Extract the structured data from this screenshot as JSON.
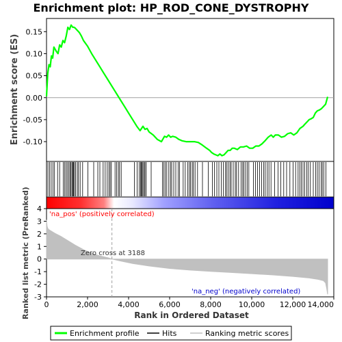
{
  "chart_data": [
    {
      "type": "line",
      "title": "Enrichment plot: HP_ROD_CONE_DYSTROPHY",
      "ylabel": "Enrichment score (ES)",
      "ylim": [
        -0.145,
        0.18
      ],
      "yticks": [
        -0.1,
        -0.05,
        0.0,
        0.05,
        0.1,
        0.15
      ],
      "ytick_labels": [
        "-0.10",
        "-0.05",
        "0.00",
        "0.05",
        "0.10",
        "0.15"
      ],
      "grid": false,
      "series": [
        {
          "name": "Enrichment profile",
          "color": "#00ff00",
          "x": [
            0,
            60,
            120,
            180,
            240,
            300,
            360,
            420,
            480,
            560,
            640,
            720,
            800,
            880,
            960,
            1040,
            1120,
            1200,
            1280,
            1340,
            1400,
            1460,
            1520,
            1600,
            1700,
            1800,
            2000,
            2200,
            2400,
            2600,
            2800,
            3000,
            3200,
            3400,
            3600,
            3800,
            4000,
            4200,
            4400,
            4560,
            4700,
            4800,
            4900,
            5000,
            5200,
            5400,
            5600,
            5750,
            5850,
            5950,
            6050,
            6150,
            6300,
            6450,
            6600,
            6800,
            7000,
            7200,
            7400,
            7600,
            7800,
            7950,
            8050,
            8150,
            8250,
            8350,
            8450,
            8550,
            8650,
            8750,
            8850,
            8950,
            9050,
            9150,
            9300,
            9450,
            9600,
            9750,
            9900,
            10050,
            10200,
            10350,
            10500,
            10650,
            10800,
            10950,
            11050,
            11150,
            11300,
            11450,
            11600,
            11750,
            11900,
            12050,
            12200,
            12350,
            12500,
            12600,
            12700,
            12800,
            12900,
            13000,
            13100,
            13200,
            13300,
            13400,
            13500,
            13600,
            13700
          ],
          "y": [
            0.003,
            0.055,
            0.075,
            0.07,
            0.095,
            0.09,
            0.115,
            0.11,
            0.105,
            0.1,
            0.12,
            0.115,
            0.13,
            0.125,
            0.14,
            0.16,
            0.155,
            0.165,
            0.16,
            0.16,
            0.158,
            0.155,
            0.152,
            0.148,
            0.14,
            0.13,
            0.117,
            0.1,
            0.085,
            0.07,
            0.055,
            0.04,
            0.025,
            0.01,
            -0.005,
            -0.02,
            -0.035,
            -0.05,
            -0.065,
            -0.075,
            -0.065,
            -0.072,
            -0.07,
            -0.078,
            -0.085,
            -0.095,
            -0.1,
            -0.088,
            -0.09,
            -0.085,
            -0.09,
            -0.088,
            -0.09,
            -0.095,
            -0.098,
            -0.1,
            -0.1,
            -0.1,
            -0.102,
            -0.108,
            -0.115,
            -0.12,
            -0.125,
            -0.128,
            -0.13,
            -0.132,
            -0.128,
            -0.132,
            -0.13,
            -0.125,
            -0.12,
            -0.12,
            -0.115,
            -0.115,
            -0.118,
            -0.112,
            -0.112,
            -0.11,
            -0.115,
            -0.115,
            -0.11,
            -0.11,
            -0.105,
            -0.098,
            -0.09,
            -0.085,
            -0.09,
            -0.085,
            -0.085,
            -0.09,
            -0.088,
            -0.082,
            -0.08,
            -0.085,
            -0.08,
            -0.07,
            -0.065,
            -0.06,
            -0.055,
            -0.05,
            -0.048,
            -0.045,
            -0.035,
            -0.03,
            -0.028,
            -0.025,
            -0.02,
            -0.015,
            0.002
          ]
        }
      ]
    },
    {
      "type": "table",
      "series": [
        {
          "name": "Hits",
          "color": "#000000",
          "x": [
            70,
            150,
            230,
            320,
            390,
            540,
            640,
            820,
            880,
            950,
            1010,
            1080,
            1140,
            1190,
            1240,
            1280,
            1320,
            1360,
            1420,
            1500,
            1560,
            1640,
            1760,
            2020,
            2300,
            2500,
            2600,
            2760,
            2860,
            2960,
            3040,
            3100,
            3160,
            3340,
            3420,
            3500,
            3560,
            3640,
            4280,
            4420,
            4520,
            4580,
            4620,
            4660,
            4700,
            4760,
            4800,
            4860,
            5100,
            5650,
            5720,
            5790,
            5860,
            5960,
            6040,
            6100,
            6200,
            6300,
            6420,
            6480,
            6660,
            6760,
            6880,
            6960,
            7020,
            7100,
            7160,
            7240,
            7360,
            7600,
            7880,
            8080,
            8180,
            8300,
            8400,
            8520,
            8620,
            8720,
            8780,
            8860,
            8940,
            9000,
            9100,
            9200,
            9260,
            9360,
            9480,
            9560,
            9620,
            9700,
            9780,
            9860,
            10080,
            10180,
            10280,
            10380,
            10480,
            10580,
            10660,
            10760,
            10840,
            10940,
            11120,
            11280,
            11420,
            11560,
            11700,
            11860,
            12020,
            12140,
            12260,
            12340,
            12420,
            12500,
            12580,
            12680,
            12760,
            12860,
            13000,
            13120,
            13200,
            13280,
            13380,
            13440,
            13520,
            13620
          ]
        }
      ]
    },
    {
      "type": "area",
      "ylabel": "Ranked list metric (PreRanked)",
      "xlabel": "Rank in Ordered Dataset",
      "xlim": [
        0,
        14000
      ],
      "ylim": [
        -3,
        4
      ],
      "xticks": [
        0,
        2000,
        4000,
        6000,
        8000,
        10000,
        12000,
        14000
      ],
      "xtick_labels": [
        "0",
        "2,000",
        "4,000",
        "6,000",
        "8,000",
        "10,000",
        "12,000",
        "14,000"
      ],
      "yticks": [
        -3,
        -2,
        -1,
        0,
        1,
        2,
        3,
        4
      ],
      "ytick_labels": [
        "-3",
        "-2",
        "-1",
        "0",
        "1",
        "2",
        "3",
        "4"
      ],
      "zero_cross": 3188,
      "annotations": {
        "zero_cross": "Zero cross at 3188",
        "pos": "'na_pos' (positively correlated)",
        "neg": "'na_neg' (negatively correlated)"
      },
      "series": [
        {
          "name": "Ranking metric scores",
          "color": "#c0c0c0",
          "x": [
            0,
            10,
            30,
            60,
            100,
            200,
            400,
            700,
            1000,
            1400,
            1800,
            2200,
            2600,
            3000,
            3188,
            3600,
            4200,
            5000,
            6000,
            7000,
            8000,
            9000,
            10000,
            11000,
            12000,
            12800,
            13200,
            13500,
            13600,
            13650,
            13700
          ],
          "values": [
            3.1,
            2.9,
            2.6,
            2.45,
            2.35,
            2.25,
            2.05,
            1.8,
            1.5,
            1.1,
            0.75,
            0.45,
            0.25,
            0.1,
            0.0,
            -0.15,
            -0.35,
            -0.55,
            -0.75,
            -0.88,
            -0.98,
            -1.07,
            -1.16,
            -1.26,
            -1.38,
            -1.5,
            -1.6,
            -1.72,
            -1.9,
            -2.3,
            -2.8
          ]
        }
      ]
    }
  ],
  "legend": {
    "items": [
      {
        "label": "Enrichment profile",
        "color": "#00ff00"
      },
      {
        "label": "Hits",
        "color": "#000000"
      },
      {
        "label": "Ranking metric scores",
        "color": "#c0c0c0"
      }
    ]
  },
  "colors": {
    "pos_label": "#ff0000",
    "neg_label": "#0000cc",
    "zero_line": "#a0a0a0",
    "bar_pos": "#ff0000",
    "bar_mid": "#ffffff",
    "bar_neg": "#0000ff"
  }
}
